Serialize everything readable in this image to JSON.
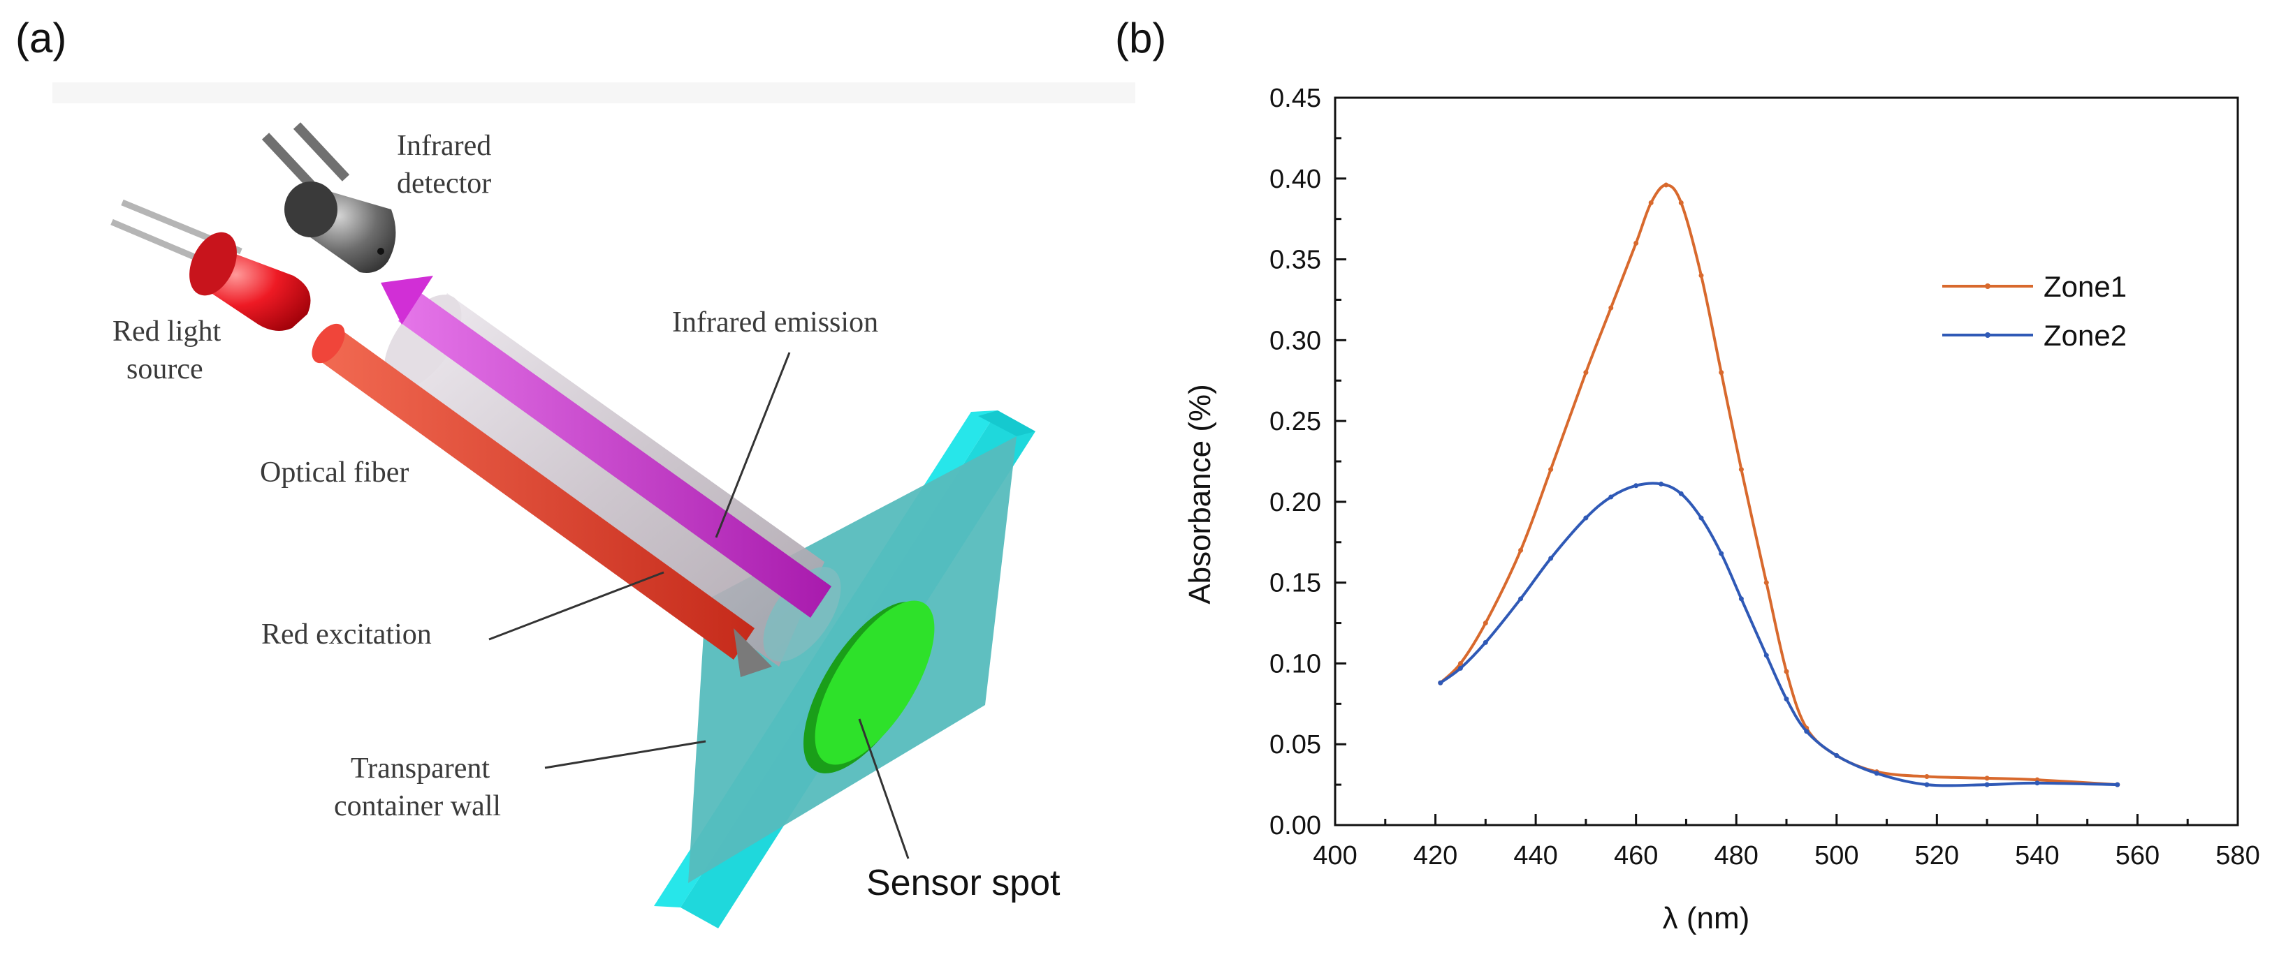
{
  "panel_a": {
    "panel_label": "(a)",
    "labels": {
      "infrared_detector": [
        "Infrared",
        "detector"
      ],
      "red_light_source": [
        "Red light",
        "source"
      ],
      "infrared_emission": "Infrared emission",
      "optical_fiber": "Optical fiber",
      "red_excitation": "Red excitation",
      "container_wall": [
        "Transparent",
        "container wall"
      ],
      "sensor_spot": "Sensor spot"
    },
    "colors": {
      "red": "#e8101a",
      "magenta": "#d12fd6",
      "cyan": "#27e6ea",
      "green": "#2ee12a",
      "fiber": "#cfc7cf"
    }
  },
  "panel_b": {
    "panel_label": "(b)"
  },
  "chart_data": {
    "type": "line",
    "title": "",
    "xlabel": "λ (nm)",
    "ylabel": "Absorbance (%)",
    "xlim": [
      400,
      580
    ],
    "ylim": [
      0,
      0.45
    ],
    "xticks": [
      400,
      420,
      440,
      460,
      480,
      500,
      520,
      540,
      560,
      580
    ],
    "yticks": [
      "0.00",
      "0.05",
      "0.10",
      "0.15",
      "0.20",
      "0.25",
      "0.30",
      "0.35",
      "0.40",
      "0.45"
    ],
    "legend_position": "upper-right",
    "series": [
      {
        "name": "Zone1",
        "color": "#d8692d",
        "x": [
          421,
          425,
          430,
          437,
          443,
          450,
          455,
          460,
          463,
          466,
          469,
          473,
          477,
          481,
          486,
          490,
          494,
          500,
          508,
          518,
          530,
          540,
          556
        ],
        "y": [
          0.088,
          0.1,
          0.125,
          0.17,
          0.22,
          0.28,
          0.32,
          0.36,
          0.385,
          0.396,
          0.385,
          0.34,
          0.28,
          0.22,
          0.15,
          0.095,
          0.06,
          0.043,
          0.033,
          0.03,
          0.029,
          0.028,
          0.025
        ]
      },
      {
        "name": "Zone2",
        "color": "#2f59b6",
        "x": [
          421,
          425,
          430,
          437,
          443,
          450,
          455,
          460,
          465,
          469,
          473,
          477,
          481,
          486,
          490,
          494,
          500,
          508,
          518,
          530,
          540,
          556
        ],
        "y": [
          0.088,
          0.097,
          0.113,
          0.14,
          0.165,
          0.19,
          0.203,
          0.21,
          0.211,
          0.205,
          0.19,
          0.168,
          0.14,
          0.105,
          0.078,
          0.058,
          0.043,
          0.032,
          0.025,
          0.025,
          0.026,
          0.025
        ]
      }
    ]
  }
}
